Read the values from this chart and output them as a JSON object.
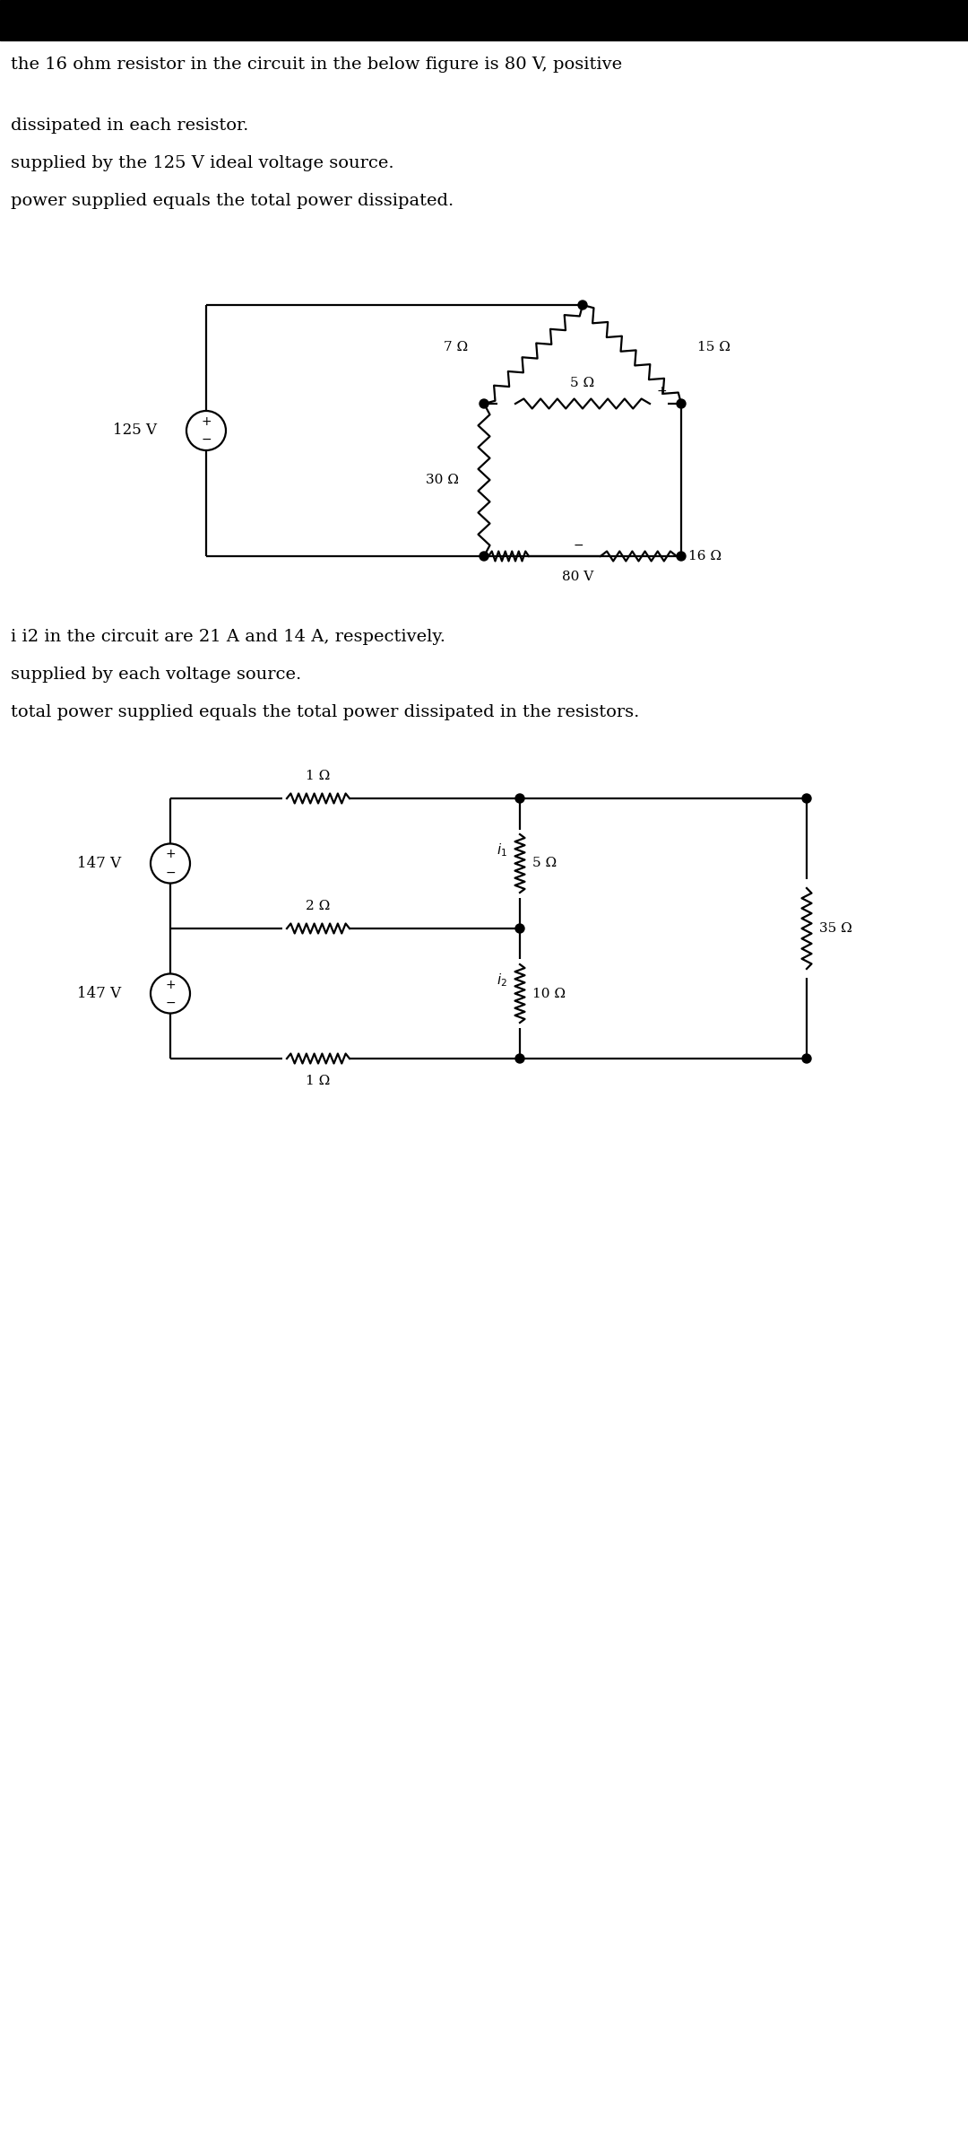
{
  "bg_color": "#ffffff",
  "text_color": "#000000",
  "line1": "the 16 ohm resistor in the circuit in the below figure is 80 V, positive",
  "line2": "dissipated in each resistor.",
  "line3": "supplied by the 125 V ideal voltage source.",
  "line4": "power supplied equals the total power dissipated.",
  "line5": "i i2 in the circuit are 21 A and 14 A, respectively.",
  "line6": "supplied by each voltage source.",
  "line7": "total power supplied equals the total power dissipated in the resistors.",
  "font_size_main": 14,
  "font_size_label": 11,
  "lw": 1.6
}
